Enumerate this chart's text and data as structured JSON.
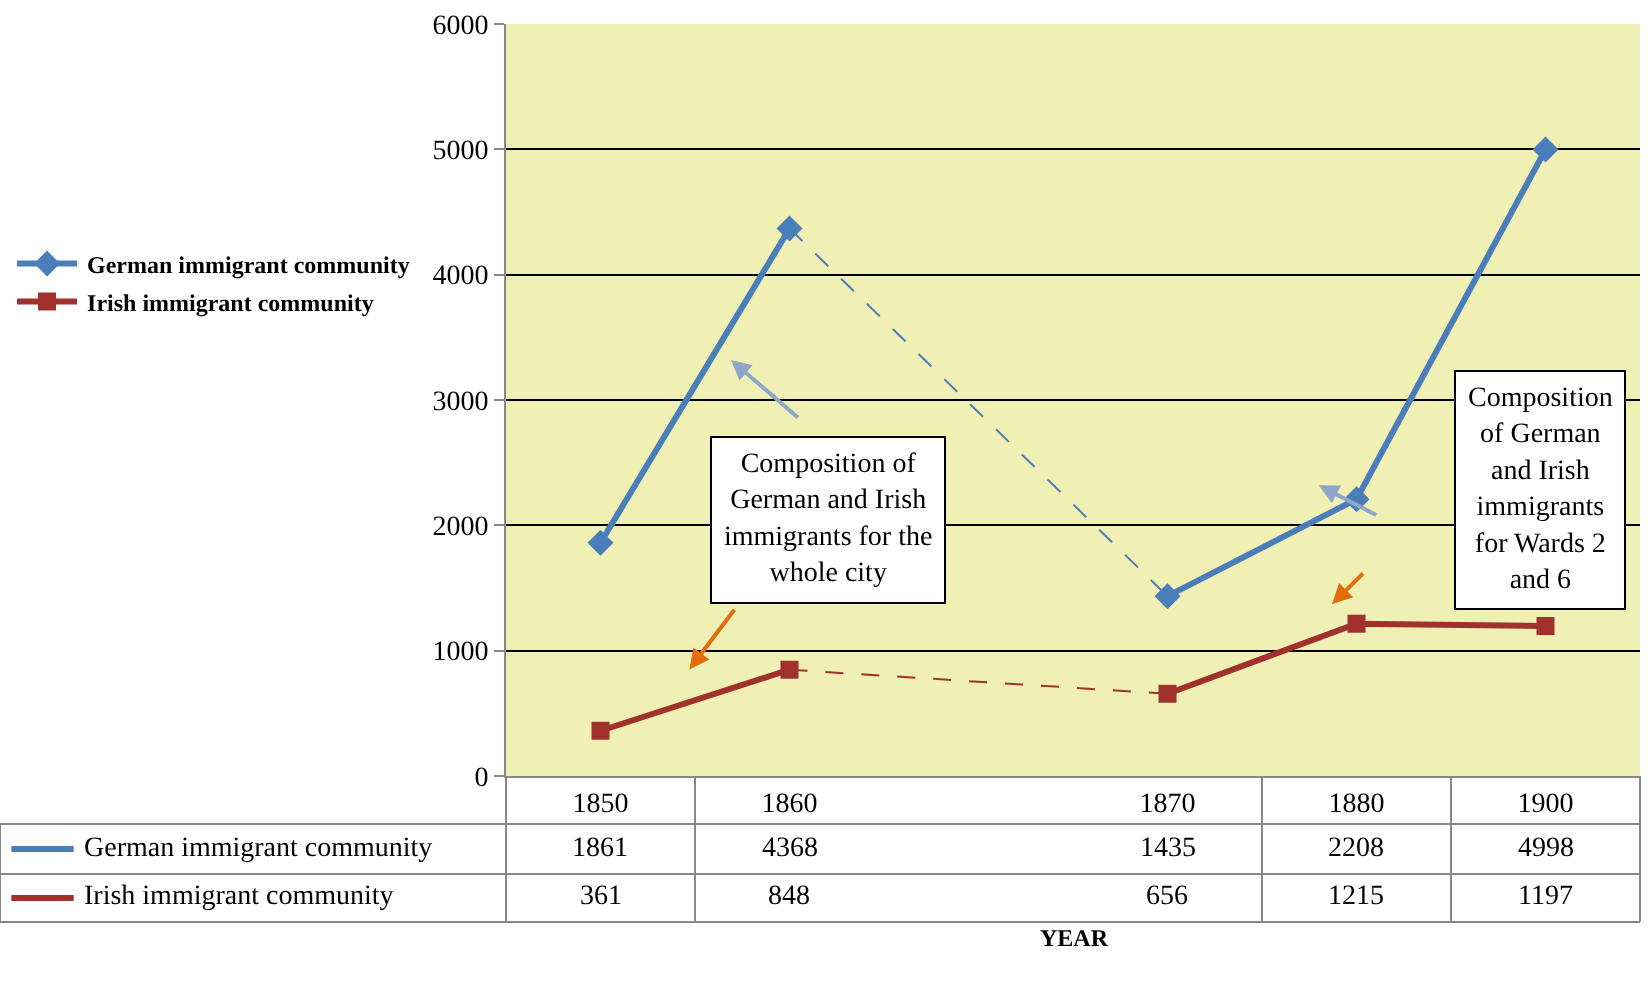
{
  "chart_data": {
    "type": "line",
    "xlabel": "YEAR",
    "categories": [
      "1850",
      "1860",
      null,
      "1870",
      "1880",
      "1900"
    ],
    "series": [
      {
        "name": "German immigrant community",
        "color": "#4a7ebb",
        "marker": "diamond",
        "values": [
          1861,
          4368,
          null,
          1435,
          2208,
          4998
        ]
      },
      {
        "name": "Irish immigrant community",
        "color": "#a0312d",
        "marker": "square",
        "values": [
          361,
          848,
          null,
          656,
          1215,
          1197
        ]
      }
    ],
    "ylim": [
      0,
      6000
    ],
    "yticks": [
      0,
      1000,
      2000,
      3000,
      4000,
      5000,
      6000
    ],
    "grid": "y",
    "legend": "left",
    "data_labels": true,
    "annotations": [
      "Composition of German and Irish immigrants for the whole city",
      "Composition of German and Irish immigrants for Wards 2 and 6"
    ]
  }
}
